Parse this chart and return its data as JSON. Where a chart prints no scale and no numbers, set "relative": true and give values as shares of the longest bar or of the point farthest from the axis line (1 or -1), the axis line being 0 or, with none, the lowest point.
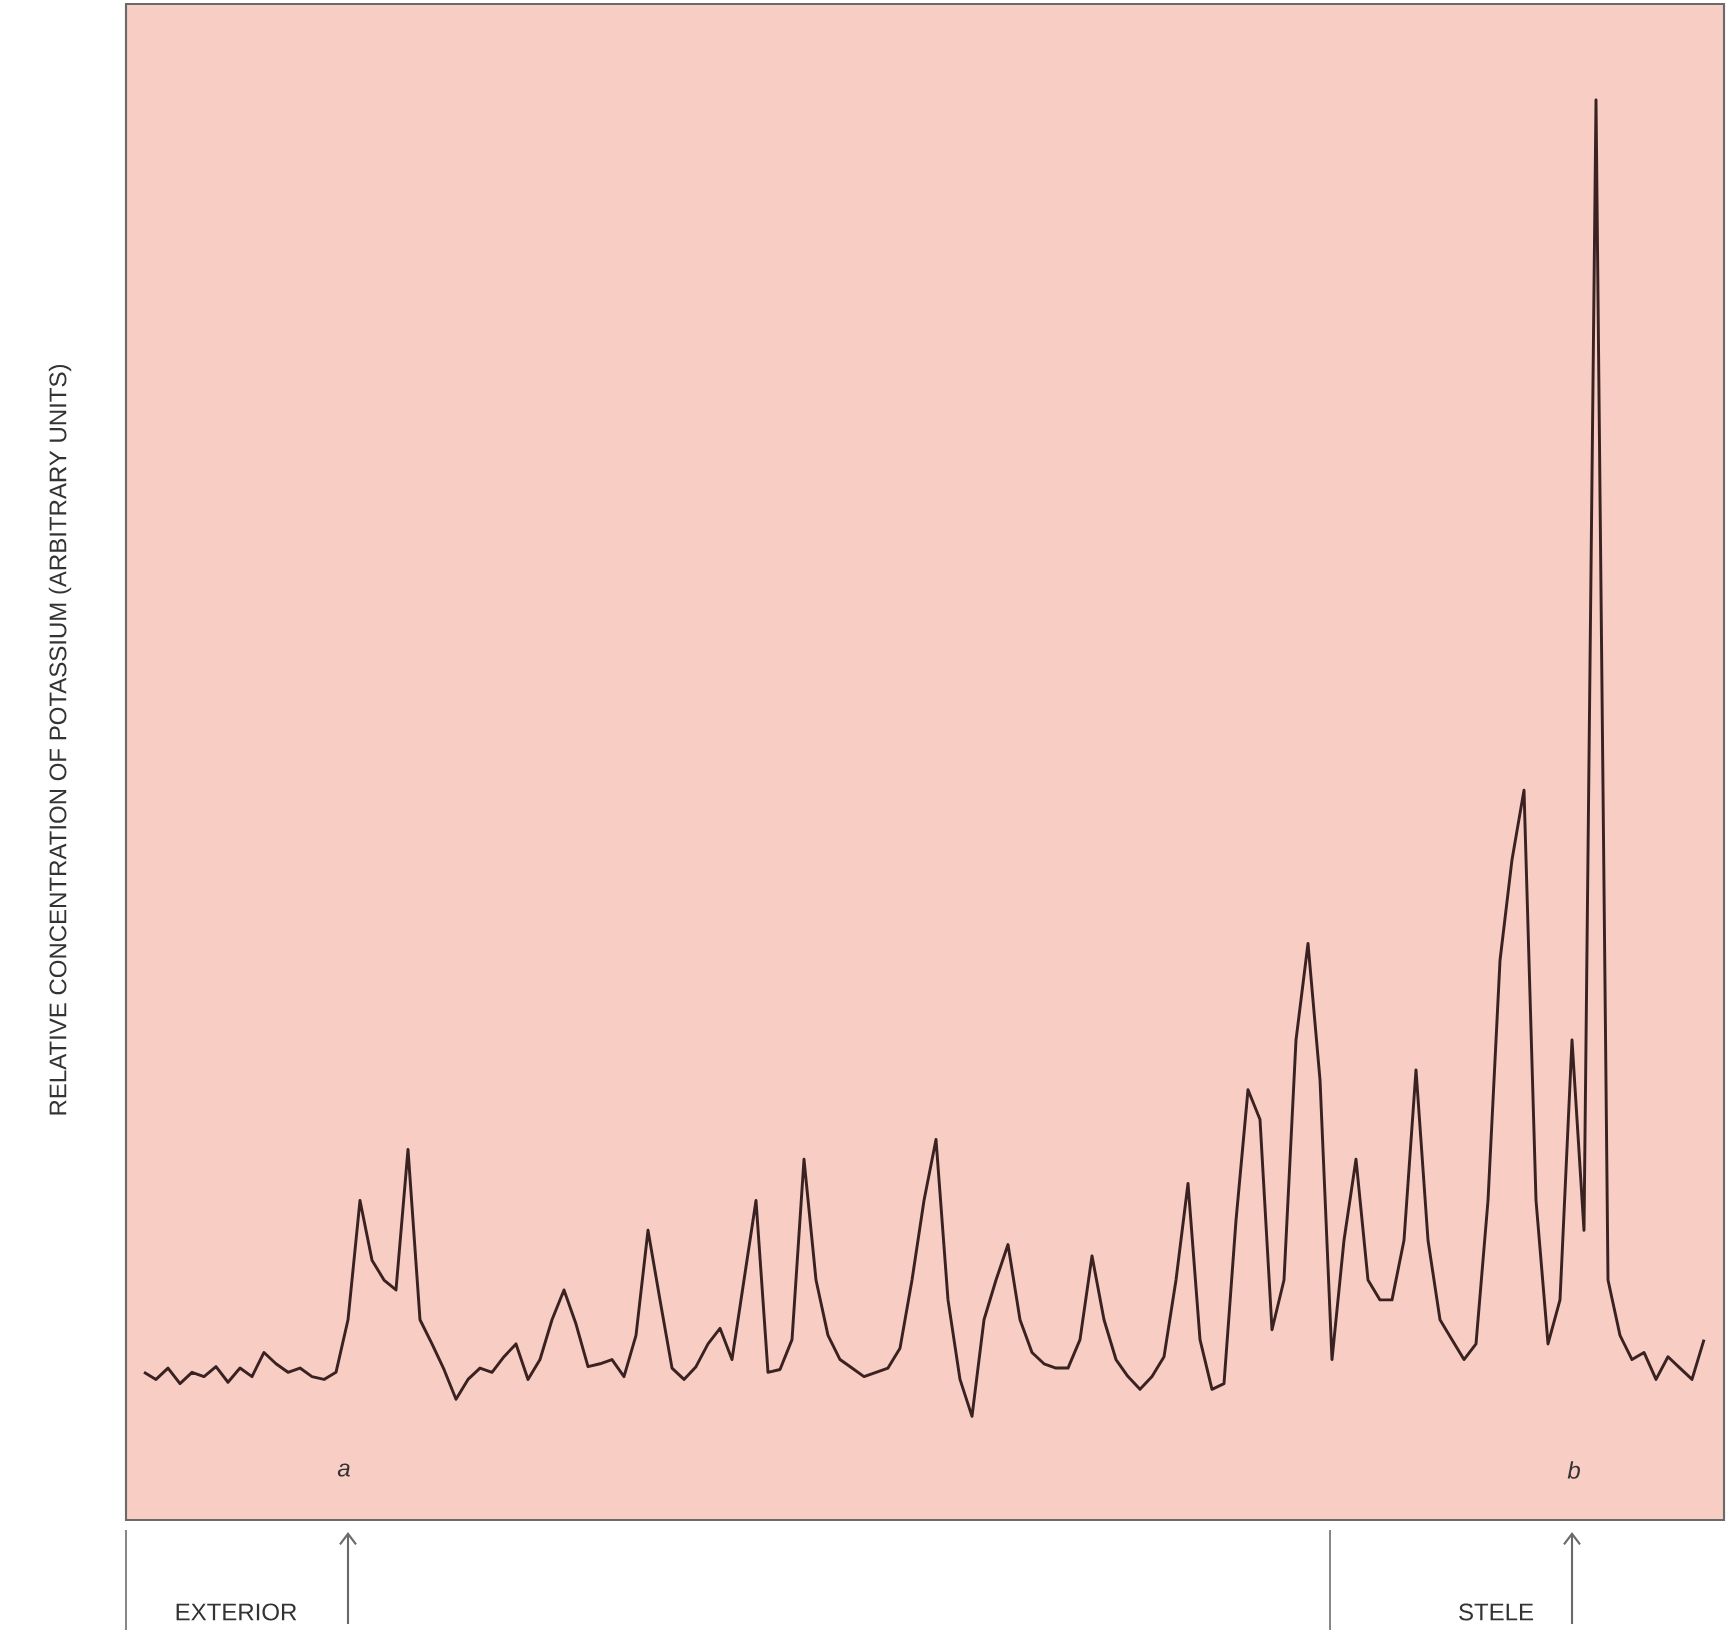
{
  "chart_data": {
    "type": "line",
    "relative": true,
    "ylabel": "RELATIVE CONCENTRATION OF POTASSIUM (ARBITRARY UNITS)",
    "categories": [
      null,
      null,
      null,
      null,
      null,
      null,
      null,
      null,
      null,
      null,
      null,
      null,
      null,
      null,
      null,
      null,
      null,
      null,
      null,
      null,
      null,
      null,
      null,
      null,
      null,
      null,
      null,
      null,
      null,
      null,
      null,
      null,
      null,
      null,
      null,
      null,
      null,
      null,
      null,
      null,
      null,
      null,
      null,
      null,
      null,
      null,
      null,
      null,
      null,
      null,
      null,
      null,
      null,
      null,
      null,
      null,
      null,
      null,
      null,
      null,
      null,
      null,
      null,
      null,
      null,
      null,
      null,
      null,
      null,
      null,
      null,
      null,
      null,
      null,
      null,
      null,
      null,
      null,
      null,
      null,
      null,
      null,
      null,
      null,
      null,
      null,
      null,
      null,
      null,
      null,
      null,
      null,
      null,
      null,
      null,
      null,
      null,
      null,
      null,
      null,
      null,
      null,
      null,
      null,
      null,
      null,
      null,
      null,
      null,
      null,
      null,
      null,
      null,
      null,
      null,
      null,
      null,
      null,
      null,
      null,
      null,
      null,
      null,
      null,
      null,
      null,
      null,
      null,
      null,
      null,
      null
    ],
    "series": [
      {
        "color": "#3a2222",
        "values": [
          0.104,
          0.099,
          0.107,
          0.096,
          0.104,
          0.101,
          0.108,
          0.097,
          0.107,
          0.101,
          0.118,
          0.11,
          0.104,
          0.107,
          0.101,
          0.099,
          0.104,
          0.141,
          0.225,
          0.183,
          0.169,
          0.162,
          0.261,
          0.141,
          0.124,
          0.106,
          0.085,
          0.099,
          0.107,
          0.104,
          0.115,
          0.124,
          0.099,
          0.113,
          0.141,
          0.162,
          0.138,
          0.108,
          0.11,
          0.113,
          0.101,
          0.13,
          0.204,
          0.155,
          0.107,
          0.099,
          0.108,
          0.124,
          0.135,
          0.113,
          0.169,
          0.225,
          0.104,
          0.106,
          0.127,
          0.254,
          0.169,
          0.13,
          0.113,
          0.107,
          0.101,
          0.104,
          0.107,
          0.121,
          0.169,
          0.225,
          0.268,
          0.155,
          0.099,
          0.073,
          0.141,
          0.169,
          0.194,
          0.141,
          0.118,
          0.11,
          0.107,
          0.107,
          0.127,
          0.186,
          0.141,
          0.113,
          0.101,
          0.092,
          0.101,
          0.115,
          0.169,
          0.237,
          0.127,
          0.092,
          0.096,
          0.211,
          0.303,
          0.282,
          0.134,
          0.169,
          0.338,
          0.406,
          0.31,
          0.113,
          0.197,
          0.254,
          0.169,
          0.155,
          0.155,
          0.197,
          0.317,
          0.197,
          0.141,
          0.127,
          0.113,
          0.124,
          0.225,
          0.394,
          0.465,
          0.514,
          0.225,
          0.124,
          0.155,
          0.338,
          0.204,
          1,
          0.169,
          0.13,
          0.113,
          0.118,
          0.099,
          0.115,
          0.107,
          0.099,
          0.127
        ]
      }
    ],
    "annotations": [
      "a",
      "b",
      "EXTERIOR",
      "STELE"
    ]
  }
}
